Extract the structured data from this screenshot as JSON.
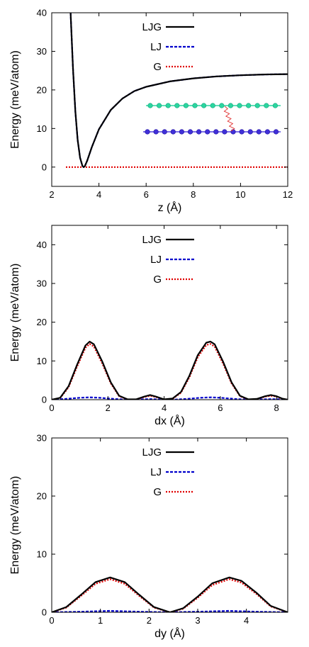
{
  "chart_data": [
    {
      "type": "line",
      "xlabel": "z (Å)",
      "ylabel": "Energy (meV/atom)",
      "xlim": [
        2,
        12
      ],
      "ylim": [
        -5,
        40
      ],
      "xticks": [
        2,
        4,
        6,
        8,
        10,
        12
      ],
      "yticks": [
        0,
        10,
        20,
        30,
        40
      ],
      "legend_position": "top-center",
      "colors": {
        "LJG": "#000000",
        "LJ": "#0000cc",
        "G": "#e00000"
      },
      "inset": "bilayer-schematic",
      "series": [
        {
          "name": "LJG",
          "x": [
            2.8,
            2.9,
            3.0,
            3.1,
            3.2,
            3.3,
            3.35,
            3.4,
            3.5,
            3.7,
            4.0,
            4.5,
            5.0,
            5.5,
            6.0,
            7.0,
            8.0,
            9.0,
            10.0,
            11.0,
            12.0
          ],
          "y": [
            40,
            25.5,
            14.5,
            7.0,
            2.4,
            0.3,
            0.0,
            0.2,
            1.6,
            5.2,
            9.8,
            14.8,
            17.8,
            19.7,
            20.8,
            22.2,
            23.0,
            23.5,
            23.8,
            24.0,
            24.1
          ]
        },
        {
          "name": "LJ",
          "x": [
            2.8,
            2.9,
            3.0,
            3.1,
            3.2,
            3.3,
            3.35,
            3.4,
            3.5,
            3.7,
            4.0,
            4.5,
            5.0,
            5.5,
            6.0,
            7.0,
            8.0,
            9.0,
            10.0,
            11.0,
            12.0
          ],
          "y": [
            40,
            25.5,
            14.5,
            7.0,
            2.4,
            0.3,
            0.0,
            0.2,
            1.6,
            5.2,
            9.8,
            14.8,
            17.8,
            19.7,
            20.8,
            22.2,
            23.0,
            23.5,
            23.8,
            24.0,
            24.1
          ]
        },
        {
          "name": "G",
          "x": [
            2.6,
            12.0
          ],
          "y": [
            0,
            0
          ]
        }
      ]
    },
    {
      "type": "line",
      "xlabel": "dx (Å)",
      "ylabel": "Energy (meV/atom)",
      "xlim": [
        0,
        8.4
      ],
      "ylim": [
        0,
        45
      ],
      "xticks": [
        0,
        2,
        4,
        6,
        8
      ],
      "yticks": [
        0,
        10,
        20,
        30,
        40
      ],
      "legend_position": "top-center",
      "colors": {
        "LJG": "#000000",
        "LJ": "#0000cc",
        "G": "#e00000"
      },
      "series": [
        {
          "name": "LJG",
          "x": [
            0,
            0.3,
            0.6,
            0.9,
            1.2,
            1.35,
            1.5,
            1.8,
            2.1,
            2.4,
            2.7,
            3.0,
            3.3,
            3.5,
            3.7,
            4.0,
            4.3,
            4.6,
            4.9,
            5.2,
            5.5,
            5.65,
            5.8,
            6.1,
            6.4,
            6.7,
            7.0,
            7.3,
            7.6,
            7.8,
            8.0,
            8.2,
            8.4
          ],
          "y": [
            0,
            0.5,
            3.5,
            9.0,
            14.0,
            15.0,
            14.3,
            9.8,
            4.5,
            1.0,
            0.1,
            0.1,
            0.8,
            1.2,
            0.8,
            0.1,
            0.3,
            2.0,
            6.2,
            11.5,
            14.7,
            15.0,
            14.3,
            9.8,
            4.5,
            1.0,
            0.1,
            0.2,
            0.9,
            1.2,
            0.9,
            0.3,
            0
          ]
        },
        {
          "name": "LJ",
          "x": [
            0,
            0.5,
            1.0,
            1.35,
            1.7,
            2.2,
            2.7,
            3.2,
            3.5,
            3.8,
            4.3,
            4.8,
            5.3,
            5.65,
            6.0,
            6.5,
            7.0,
            7.5,
            7.8,
            8.1,
            8.4
          ],
          "y": [
            0,
            0.2,
            0.5,
            0.6,
            0.5,
            0.2,
            0.0,
            0.1,
            0.15,
            0.1,
            0.0,
            0.2,
            0.5,
            0.6,
            0.5,
            0.2,
            0.0,
            0.1,
            0.15,
            0.1,
            0
          ]
        },
        {
          "name": "G",
          "x": [
            0,
            0.3,
            0.6,
            0.9,
            1.2,
            1.35,
            1.5,
            1.8,
            2.1,
            2.4,
            2.7,
            3.0,
            3.3,
            3.5,
            3.7,
            4.0,
            4.3,
            4.6,
            4.9,
            5.2,
            5.5,
            5.65,
            5.8,
            6.1,
            6.4,
            6.7,
            7.0,
            7.3,
            7.6,
            7.8,
            8.0,
            8.2,
            8.4
          ],
          "y": [
            0,
            0.4,
            3.2,
            8.5,
            13.4,
            14.4,
            13.7,
            9.3,
            4.2,
            0.9,
            0.05,
            0.05,
            0.7,
            1.0,
            0.7,
            0.05,
            0.2,
            1.8,
            5.8,
            11.0,
            14.1,
            14.4,
            13.7,
            9.3,
            4.2,
            0.9,
            0.05,
            0.1,
            0.8,
            1.0,
            0.8,
            0.2,
            0
          ]
        }
      ]
    },
    {
      "type": "line",
      "xlabel": "dy (Å)",
      "ylabel": "Energy (meV/atom)",
      "xlim": [
        0,
        4.85
      ],
      "ylim": [
        0,
        30
      ],
      "xticks": [
        0,
        1,
        2,
        3,
        4
      ],
      "yticks": [
        0,
        10,
        20,
        30
      ],
      "legend_position": "top-center",
      "colors": {
        "LJG": "#000000",
        "LJ": "#0000cc",
        "G": "#e00000"
      },
      "series": [
        {
          "name": "LJG",
          "x": [
            0,
            0.3,
            0.6,
            0.9,
            1.2,
            1.5,
            1.8,
            2.1,
            2.43,
            2.7,
            3.0,
            3.3,
            3.65,
            3.9,
            4.2,
            4.5,
            4.85
          ],
          "y": [
            0,
            0.9,
            3.0,
            5.2,
            6.0,
            5.2,
            3.0,
            0.9,
            0,
            0.7,
            2.7,
            5.0,
            6.0,
            5.4,
            3.4,
            1.1,
            0
          ]
        },
        {
          "name": "LJ",
          "x": [
            0,
            0.6,
            1.2,
            1.8,
            2.43,
            3.0,
            3.65,
            4.2,
            4.85
          ],
          "y": [
            0,
            0.1,
            0.25,
            0.1,
            0,
            0.1,
            0.25,
            0.1,
            0
          ]
        },
        {
          "name": "G",
          "x": [
            0,
            0.3,
            0.6,
            0.9,
            1.2,
            1.5,
            1.8,
            2.1,
            2.43,
            2.7,
            3.0,
            3.3,
            3.65,
            3.9,
            4.2,
            4.5,
            4.85
          ],
          "y": [
            0,
            0.8,
            2.8,
            4.9,
            5.7,
            4.9,
            2.8,
            0.8,
            0,
            0.6,
            2.5,
            4.7,
            5.7,
            5.1,
            3.2,
            1.0,
            0
          ]
        }
      ]
    }
  ]
}
